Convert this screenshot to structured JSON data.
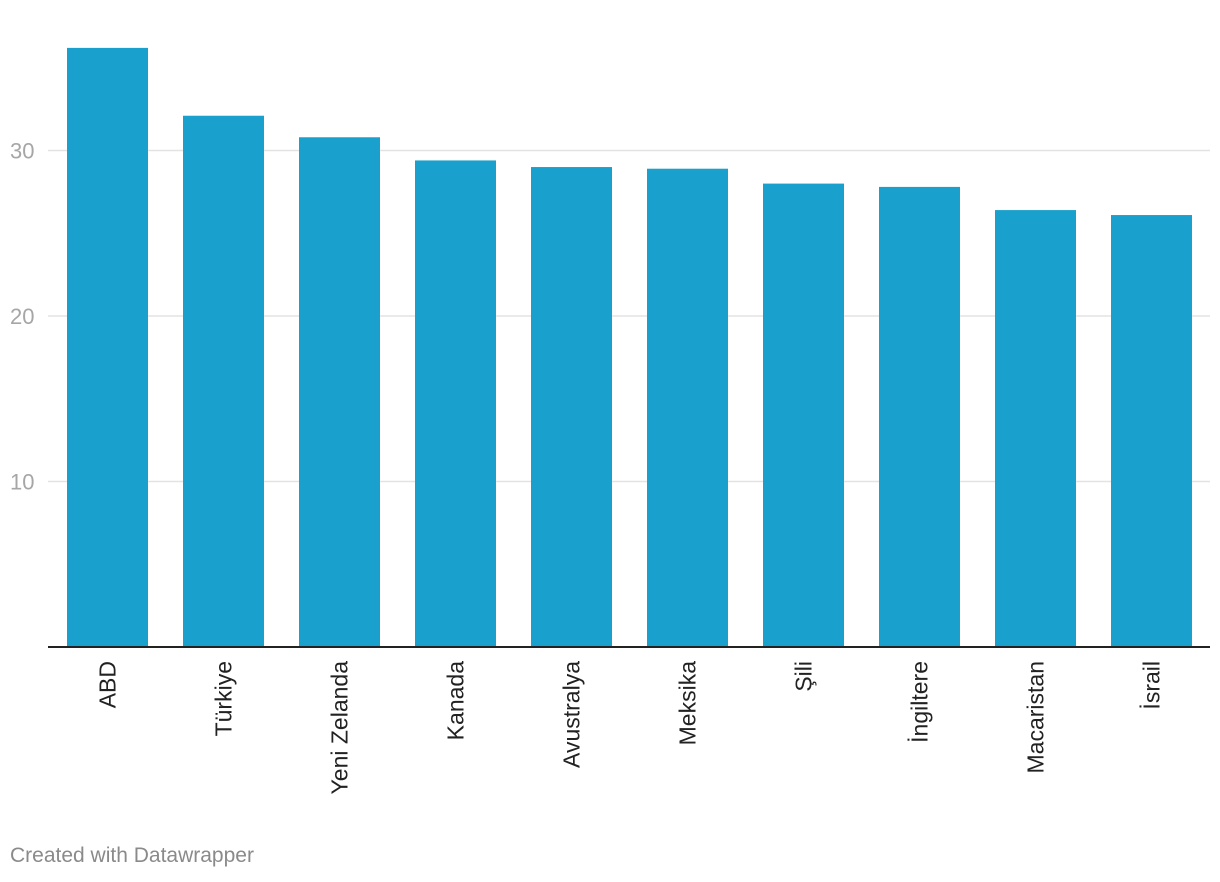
{
  "chart_data": {
    "type": "bar",
    "title": "",
    "xlabel": "",
    "ylabel": "",
    "categories": [
      "ABD",
      "Türkiye",
      "Yeni Zelanda",
      "Kanada",
      "Avustralya",
      "Meksika",
      "Şili",
      "İngiltere",
      "Macaristan",
      "İsrail"
    ],
    "values": [
      36.2,
      32.1,
      30.8,
      29.4,
      29.0,
      28.9,
      28.0,
      27.8,
      26.4,
      26.1
    ],
    "ylim": [
      0,
      36.2
    ],
    "yticks": [
      10,
      20,
      30
    ],
    "grid": true,
    "bar_color": "#1aa0cc",
    "gridline_color": "#e3e3e3",
    "axis_color": "#222222",
    "tick_label_color": "#a6a6a6"
  },
  "footer": {
    "credit": "Created with Datawrapper"
  }
}
